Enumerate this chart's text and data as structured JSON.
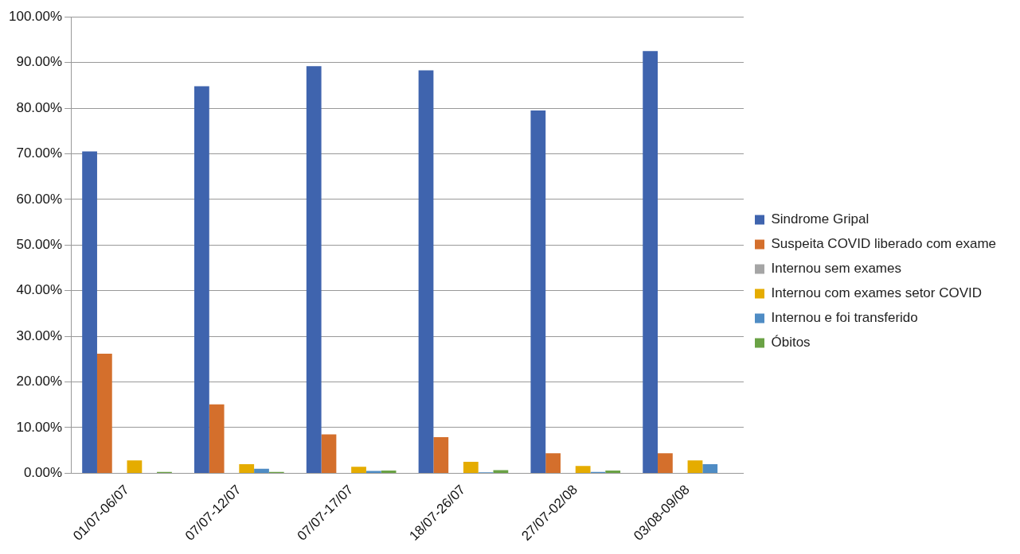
{
  "chart_data": {
    "type": "bar",
    "categories": [
      "01/07-06/07",
      "07/07-12/07",
      "07/07-17/07",
      "18/07-26/07",
      "27/07-02/08",
      "03/08-09/08"
    ],
    "series": [
      {
        "name": "Sindrome Gripal",
        "color": "#3f64ae",
        "values": [
          70.5,
          84.8,
          89.2,
          88.3,
          79.5,
          92.5
        ]
      },
      {
        "name": "Suspeita COVID liberado com exame",
        "color": "#d46f2c",
        "values": [
          26.2,
          15.1,
          8.5,
          7.9,
          4.4,
          4.4
        ]
      },
      {
        "name": "Internou sem exames",
        "color": "#a5a5a5",
        "values": [
          0,
          0,
          0,
          0,
          0,
          0
        ]
      },
      {
        "name": "Internou com exames setor COVID",
        "color": "#e5ac00",
        "values": [
          2.8,
          2.0,
          1.4,
          2.5,
          1.6,
          2.8
        ]
      },
      {
        "name": "Internou e foi transferido",
        "color": "#4f8cc4",
        "values": [
          0,
          1.0,
          0.5,
          0.2,
          0.3,
          2.0
        ]
      },
      {
        "name": "Óbitos",
        "color": "#6aa245",
        "values": [
          0.3,
          0.3,
          0.6,
          0.7,
          0.6,
          0
        ]
      }
    ],
    "ylim": [
      0,
      100
    ],
    "yticks": [
      {
        "value": 0,
        "label": "0.00%"
      },
      {
        "value": 10,
        "label": "10.00%"
      },
      {
        "value": 20,
        "label": "20.00%"
      },
      {
        "value": 30,
        "label": "30.00%"
      },
      {
        "value": 40,
        "label": "40.00%"
      },
      {
        "value": 50,
        "label": "50.00%"
      },
      {
        "value": 60,
        "label": "60.00%"
      },
      {
        "value": 70,
        "label": "70.00%"
      },
      {
        "value": 80,
        "label": "80.00%"
      },
      {
        "value": 90,
        "label": "90.00%"
      },
      {
        "value": 100,
        "label": "100.00%"
      }
    ],
    "grid": "y",
    "legend": "right"
  }
}
